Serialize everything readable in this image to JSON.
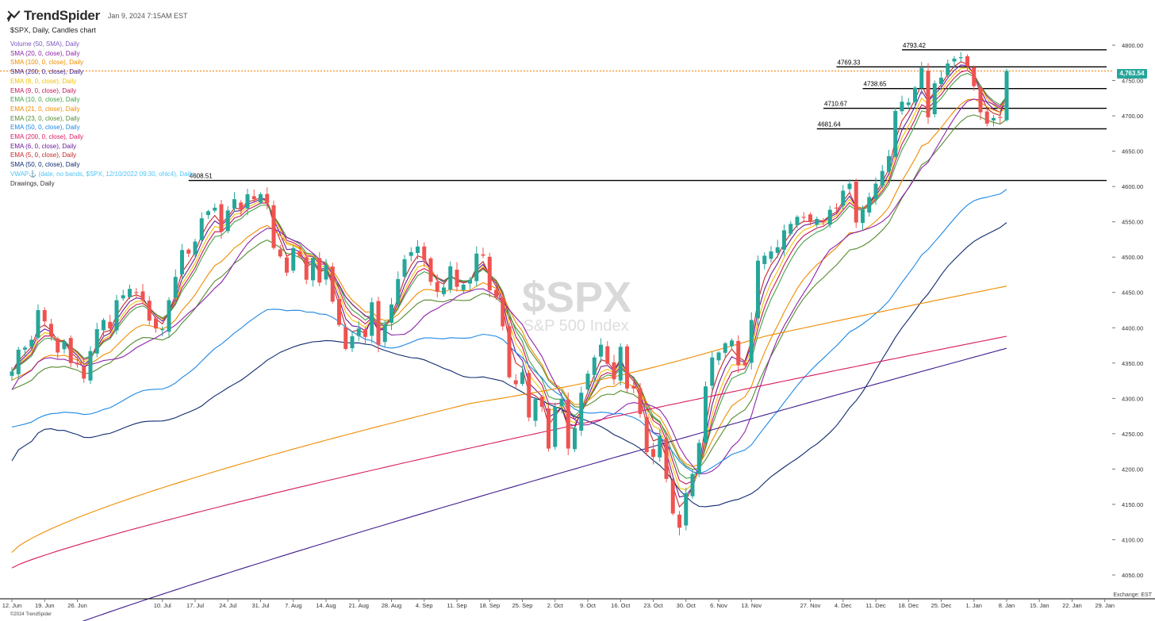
{
  "app": {
    "brand": "TrendSpider",
    "datetime": "Jan 9, 2024 7:15AM EST",
    "symbol_line": "$SPX, Daily, Candles chart",
    "watermark_symbol": "$SPX",
    "watermark_name": "S&P 500 Index",
    "footer": "©2024 TrendSpider",
    "exchange": "Exchange: EST"
  },
  "legend": [
    {
      "label": "Volume (50, SMA), Daily",
      "color": "#7e57c2"
    },
    {
      "label": "SMA (20, 0, close), Daily",
      "color": "#8e24aa"
    },
    {
      "label": "SMA (100, 0, close), Daily",
      "color": "#ef8c00"
    },
    {
      "label": "SMA (200, 0, close), Daily",
      "color": "#3f1b8c"
    },
    {
      "label": "EMA (8, 0, close), Daily",
      "color": "#f2c200"
    },
    {
      "label": "EMA (9, 0, close), Daily",
      "color": "#c2185b"
    },
    {
      "label": "EMA (10, 0, close), Daily",
      "color": "#43a047"
    },
    {
      "label": "EMA (21, 0, close), Daily",
      "color": "#ef8c00"
    },
    {
      "label": "EMA (23, 0, close), Daily",
      "color": "#558b2f"
    },
    {
      "label": "EMA (50, 0, close), Daily",
      "color": "#1e88e5"
    },
    {
      "label": "EMA (200, 0, close), Daily",
      "color": "#d81b60"
    },
    {
      "label": "EMA (6, 0, close), Daily",
      "color": "#6a1b9a"
    },
    {
      "label": "EMA (5, 0, close), Daily",
      "color": "#c62828"
    },
    {
      "label": "SMA (50, 0, close), Daily",
      "color": "#0d2b6e"
    },
    {
      "label": "VWAP⚓ (date, no bands, $SPX, 12/10/2022 09:30, ohlc4), Daily",
      "color": "#4fc3f7"
    },
    {
      "label": "Drawings, Daily",
      "color": "#333333"
    }
  ],
  "colors": {
    "up": "#26a69a",
    "down": "#ef5350",
    "last_price_line": "#f57c00"
  },
  "chart_data": {
    "type": "candlestick",
    "title": "$SPX, Daily, Candles chart",
    "ylim": [
      4035,
      4810
    ],
    "y_ticks": [
      4050,
      4100,
      4150,
      4200,
      4250,
      4300,
      4350,
      4400,
      4450,
      4500,
      4550,
      4600,
      4650,
      4700,
      4750,
      4800
    ],
    "y_tick_labels": [
      "4050.00",
      "4100.00",
      "4150.00",
      "4200.00",
      "4250.00",
      "4300.00",
      "4350.00",
      "4400.00",
      "4450.00",
      "4500.00",
      "4550.00",
      "4600.00",
      "4650.00",
      "4700.00",
      "4750.00",
      "4800.00"
    ],
    "x_labels": [
      "12. Jun",
      "19. Jun",
      "26. Jun",
      "10. Jul",
      "17. Jul",
      "24. Jul",
      "31. Jul",
      "7. Aug",
      "14. Aug",
      "21. Aug",
      "28. Aug",
      "4. Sep",
      "11. Sep",
      "18. Sep",
      "25. Sep",
      "2. Oct",
      "9. Oct",
      "16. Oct",
      "23. Oct",
      "30. Oct",
      "6. Nov",
      "13. Nov",
      "27. Nov",
      "4. Dec",
      "11. Dec",
      "18. Dec",
      "25. Dec",
      "1. Jan",
      "8. Jan",
      "15. Jan",
      "22. Jan",
      "29. Jan"
    ],
    "x_label_bars": [
      0,
      5,
      10,
      23,
      28,
      33,
      38,
      43,
      48,
      53,
      58,
      63,
      68,
      73,
      78,
      83,
      88,
      93,
      98,
      103,
      108,
      113,
      122,
      127,
      132,
      137,
      142,
      147,
      152,
      157,
      162,
      167
    ],
    "last_price": "4,763.54",
    "last_price_value": 4763.54,
    "levels": [
      {
        "label": "4793.42",
        "value": 4793.42,
        "start_bar": 136
      },
      {
        "label": "4769.33",
        "value": 4769.33,
        "start_bar": 126
      },
      {
        "label": "4738.65",
        "value": 4738.65,
        "start_bar": 130
      },
      {
        "label": "4710.67",
        "value": 4710.67,
        "start_bar": 124
      },
      {
        "label": "4681.64",
        "value": 4681.64,
        "start_bar": 123
      },
      {
        "label": "4608.51",
        "value": 4608.51,
        "start_bar": 27
      }
    ],
    "close_anchors": [
      [
        0,
        4338
      ],
      [
        1,
        4369
      ],
      [
        2,
        4372
      ],
      [
        3,
        4383
      ],
      [
        4,
        4425
      ],
      [
        5,
        4409
      ],
      [
        6,
        4388
      ],
      [
        7,
        4365
      ],
      [
        8,
        4381
      ],
      [
        9,
        4350
      ],
      [
        10,
        4348
      ],
      [
        11,
        4328
      ],
      [
        12,
        4367
      ],
      [
        13,
        4398
      ],
      [
        14,
        4411
      ],
      [
        15,
        4399
      ],
      [
        16,
        4439
      ],
      [
        17,
        4446
      ],
      [
        18,
        4455
      ],
      [
        19,
        4450
      ],
      [
        20,
        4439
      ],
      [
        21,
        4410
      ],
      [
        22,
        4399
      ],
      [
        23,
        4398
      ],
      [
        24,
        4439
      ],
      [
        25,
        4472
      ],
      [
        26,
        4510
      ],
      [
        27,
        4505
      ],
      [
        28,
        4522
      ],
      [
        29,
        4555
      ],
      [
        30,
        4565
      ],
      [
        31,
        4570
      ],
      [
        32,
        4536
      ],
      [
        33,
        4566
      ],
      [
        34,
        4582
      ],
      [
        35,
        4567
      ],
      [
        36,
        4589
      ],
      [
        37,
        4582
      ],
      [
        38,
        4589
      ],
      [
        39,
        4577
      ],
      [
        40,
        4513
      ],
      [
        41,
        4501
      ],
      [
        42,
        4478
      ],
      [
        43,
        4513
      ],
      [
        44,
        4501
      ],
      [
        45,
        4468
      ],
      [
        46,
        4499
      ],
      [
        47,
        4464
      ],
      [
        48,
        4489
      ],
      [
        49,
        4437
      ],
      [
        50,
        4404
      ],
      [
        51,
        4370
      ],
      [
        52,
        4388
      ],
      [
        53,
        4399
      ],
      [
        54,
        4387
      ],
      [
        55,
        4436
      ],
      [
        56,
        4376
      ],
      [
        57,
        4405
      ],
      [
        58,
        4433
      ],
      [
        59,
        4469
      ],
      [
        60,
        4497
      ],
      [
        61,
        4507
      ],
      [
        62,
        4515
      ],
      [
        63,
        4496
      ],
      [
        64,
        4465
      ],
      [
        65,
        4451
      ],
      [
        66,
        4457
      ],
      [
        67,
        4487
      ],
      [
        68,
        4458
      ],
      [
        69,
        4461
      ],
      [
        70,
        4468
      ],
      [
        71,
        4505
      ],
      [
        72,
        4502
      ],
      [
        73,
        4453
      ],
      [
        74,
        4443
      ],
      [
        75,
        4402
      ],
      [
        76,
        4330
      ],
      [
        77,
        4320
      ],
      [
        78,
        4337
      ],
      [
        79,
        4273
      ],
      [
        80,
        4299
      ],
      [
        81,
        4288
      ],
      [
        82,
        4229
      ],
      [
        83,
        4288
      ],
      [
        84,
        4299
      ],
      [
        85,
        4229
      ],
      [
        86,
        4258
      ],
      [
        87,
        4308
      ],
      [
        88,
        4335
      ],
      [
        89,
        4358
      ],
      [
        90,
        4376
      ],
      [
        91,
        4349
      ],
      [
        92,
        4327
      ],
      [
        93,
        4373
      ],
      [
        94,
        4314
      ],
      [
        95,
        4314
      ],
      [
        96,
        4278
      ],
      [
        97,
        4224
      ],
      [
        98,
        4217
      ],
      [
        99,
        4247
      ],
      [
        100,
        4186
      ],
      [
        101,
        4137
      ],
      [
        102,
        4117
      ],
      [
        103,
        4166
      ],
      [
        104,
        4193
      ],
      [
        105,
        4237
      ],
      [
        106,
        4317
      ],
      [
        107,
        4358
      ],
      [
        108,
        4365
      ],
      [
        109,
        4378
      ],
      [
        110,
        4382
      ],
      [
        111,
        4347
      ],
      [
        112,
        4347
      ],
      [
        113,
        4411
      ],
      [
        114,
        4495
      ],
      [
        115,
        4502
      ],
      [
        116,
        4508
      ],
      [
        117,
        4514
      ],
      [
        118,
        4538
      ],
      [
        119,
        4547
      ],
      [
        120,
        4557
      ],
      [
        121,
        4556
      ],
      [
        122,
        4550
      ],
      [
        123,
        4554
      ],
      [
        124,
        4550
      ],
      [
        125,
        4567
      ],
      [
        126,
        4569
      ],
      [
        127,
        4594
      ],
      [
        128,
        4604
      ],
      [
        129,
        4549
      ],
      [
        130,
        4567
      ],
      [
        131,
        4585
      ],
      [
        132,
        4604
      ],
      [
        133,
        4622
      ],
      [
        134,
        4643
      ],
      [
        135,
        4707
      ],
      [
        136,
        4720
      ],
      [
        137,
        4719
      ],
      [
        138,
        4740
      ],
      [
        139,
        4768
      ],
      [
        140,
        4698
      ],
      [
        141,
        4746
      ],
      [
        142,
        4754
      ],
      [
        143,
        4774
      ],
      [
        144,
        4781
      ],
      [
        145,
        4783
      ],
      [
        146,
        4770
      ],
      [
        147,
        4742
      ],
      [
        148,
        4705
      ],
      [
        149,
        4689
      ],
      [
        150,
        4697
      ],
      [
        151,
        4698
      ],
      [
        152,
        4763.54
      ]
    ],
    "indicator_endpoints": {
      "fast_averages": 4738,
      "ema21": 4712,
      "ema23": 4695,
      "sma20": 4716,
      "ema50": 4596,
      "sma50": 4549,
      "sma100": 4459,
      "ema200": 4388,
      "sma200": 4371
    },
    "grid": false
  }
}
